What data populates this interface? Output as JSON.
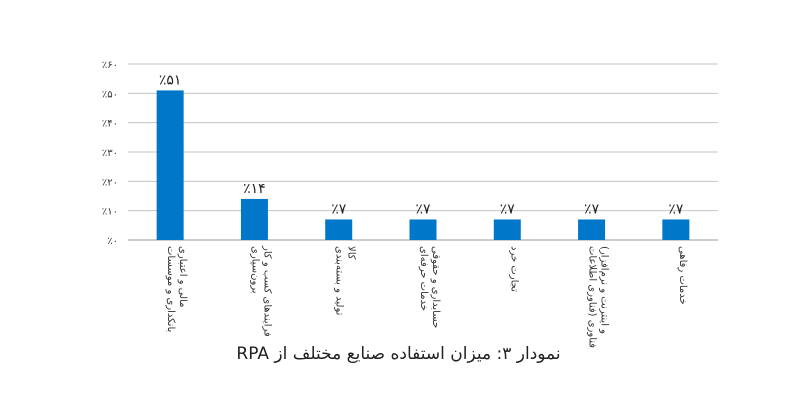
{
  "chart_data": {
    "type": "bar",
    "title": "",
    "xlabel": "",
    "ylabel": "",
    "ylim": [
      0,
      60
    ],
    "yticks": [
      0,
      10,
      20,
      30,
      40,
      50,
      60
    ],
    "ytick_labels": [
      "٪۰",
      "٪۱۰",
      "٪۲۰",
      "٪۳۰",
      "٪۴۰",
      "٪۵۰",
      "٪۶۰"
    ],
    "grid": true,
    "legend": "none",
    "bar_color": "#0077c8",
    "categories": [
      [
        "بانکداری و موسسات",
        "مالی و اعتباری"
      ],
      [
        "برون‌سپاری",
        "فرایندهای کسب و کار"
      ],
      [
        "تولید و بسته‌بندی",
        "کالا"
      ],
      [
        "خدمات حرفه‌ای",
        "حسابداری و حقوقی"
      ],
      [
        "تجارت خرد"
      ],
      [
        "فناوری (فناوری اطلاعات",
        "و اینترنت و نرم‌افزار)"
      ],
      [
        "خدمات رفاهی"
      ]
    ],
    "values": [
      51,
      14,
      7,
      7,
      7,
      7,
      7
    ],
    "value_labels": [
      "٪۵۱",
      "٪۱۴",
      "٪۷",
      "٪۷",
      "٪۷",
      "٪۷",
      "٪۷"
    ]
  },
  "caption": "نمودار ۳: میزان استفاده صنایع مختلف از RPA"
}
